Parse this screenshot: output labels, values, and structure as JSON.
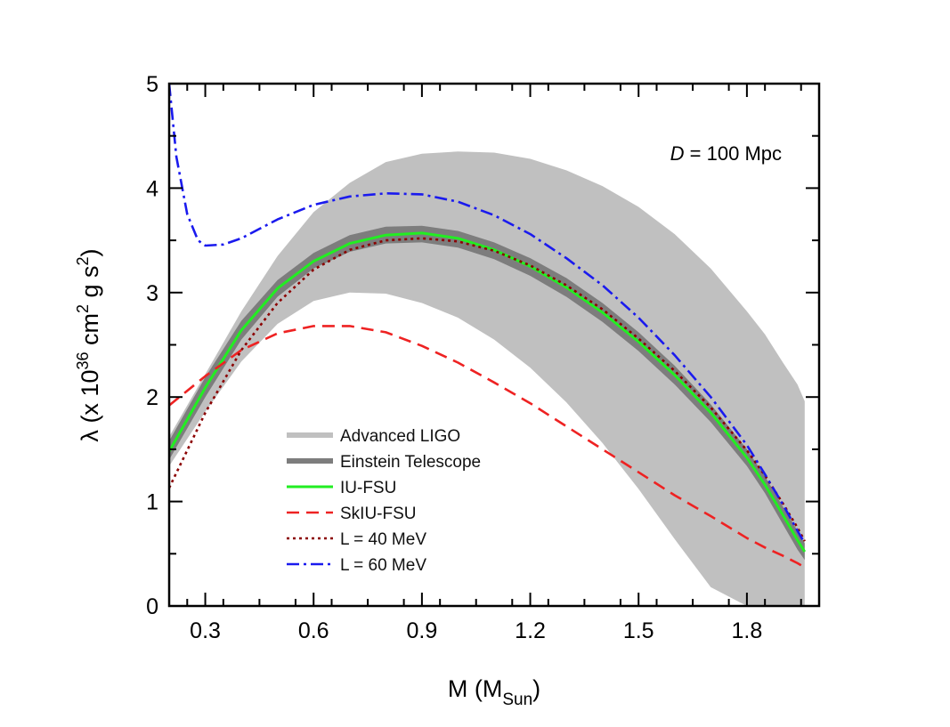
{
  "chart_data": {
    "type": "line",
    "title": "",
    "xlim": [
      0.2,
      2.0
    ],
    "ylim": [
      0,
      5
    ],
    "x_ticks": [
      0.3,
      0.6,
      0.9,
      1.2,
      1.5,
      1.8
    ],
    "x_tick_labels": [
      "0.3",
      "0.6",
      "0.9",
      "1.2",
      "1.5",
      "1.8"
    ],
    "y_ticks": [
      0,
      1,
      2,
      3,
      4,
      5
    ],
    "y_tick_labels": [
      "0",
      "1",
      "2",
      "3",
      "4",
      "5"
    ],
    "xlabel": {
      "main": "M (M",
      "sub": "Sun",
      "end": ")"
    },
    "ylabel": {
      "p1": "λ (x 10",
      "sup1": "36",
      "p2": " cm",
      "sup2": "2",
      "p3": " g s",
      "sup3": "2",
      "p4": ")"
    },
    "annotation": {
      "italic": "D",
      "rest": " = 100 Mpc"
    },
    "grid": false,
    "legend_position": "lower-center",
    "bands": [
      {
        "name": "Advanced LIGO",
        "color": "#c0c0c0",
        "x": [
          0.2,
          0.3,
          0.4,
          0.5,
          0.6,
          0.7,
          0.8,
          0.9,
          1.0,
          1.1,
          1.2,
          1.3,
          1.4,
          1.5,
          1.6,
          1.7,
          1.8,
          1.85,
          1.9,
          1.94,
          1.96
        ],
        "upper": [
          1.62,
          2.22,
          2.82,
          3.35,
          3.77,
          4.05,
          4.25,
          4.33,
          4.35,
          4.34,
          4.28,
          4.17,
          4.02,
          3.82,
          3.56,
          3.23,
          2.82,
          2.6,
          2.33,
          2.12,
          1.96
        ],
        "lower": [
          1.34,
          1.86,
          2.34,
          2.7,
          2.92,
          3.0,
          2.99,
          2.9,
          2.76,
          2.55,
          2.28,
          1.95,
          1.56,
          1.12,
          0.64,
          0.18,
          0.0,
          0.0,
          0.0,
          0.0,
          0.0
        ]
      },
      {
        "name": "Einstein Telescope",
        "color": "#7d7d7d",
        "x": [
          0.2,
          0.3,
          0.4,
          0.5,
          0.6,
          0.7,
          0.8,
          0.9,
          1.0,
          1.1,
          1.2,
          1.3,
          1.4,
          1.5,
          1.6,
          1.7,
          1.8,
          1.85,
          1.9,
          1.94,
          1.96
        ],
        "upper": [
          1.58,
          2.19,
          2.73,
          3.12,
          3.38,
          3.55,
          3.63,
          3.64,
          3.59,
          3.48,
          3.33,
          3.14,
          2.9,
          2.62,
          2.3,
          1.93,
          1.5,
          1.24,
          0.95,
          0.72,
          0.6
        ],
        "lower": [
          1.4,
          2.0,
          2.55,
          2.96,
          3.23,
          3.39,
          3.47,
          3.48,
          3.43,
          3.32,
          3.16,
          2.96,
          2.72,
          2.44,
          2.12,
          1.76,
          1.34,
          1.08,
          0.78,
          0.54,
          0.44
        ]
      }
    ],
    "series": [
      {
        "name": "IU-FSU",
        "color": "#22ee22",
        "dash": "solid",
        "x": [
          0.2,
          0.3,
          0.4,
          0.5,
          0.6,
          0.7,
          0.8,
          0.9,
          1.0,
          1.1,
          1.2,
          1.3,
          1.4,
          1.5,
          1.6,
          1.7,
          1.8,
          1.85,
          1.9,
          1.94,
          1.96
        ],
        "y": [
          1.48,
          2.09,
          2.64,
          3.04,
          3.3,
          3.47,
          3.55,
          3.57,
          3.52,
          3.41,
          3.25,
          3.05,
          2.81,
          2.53,
          2.21,
          1.85,
          1.42,
          1.16,
          0.87,
          0.63,
          0.52
        ]
      },
      {
        "name": "SkIU-FSU",
        "color": "#ee2222",
        "dash": "dashed",
        "x": [
          0.2,
          0.3,
          0.4,
          0.5,
          0.6,
          0.7,
          0.8,
          0.9,
          1.0,
          1.1,
          1.2,
          1.3,
          1.4,
          1.5,
          1.6,
          1.7,
          1.8,
          1.85,
          1.9,
          1.94,
          1.96
        ],
        "y": [
          1.92,
          2.2,
          2.45,
          2.61,
          2.68,
          2.68,
          2.62,
          2.49,
          2.33,
          2.14,
          1.94,
          1.72,
          1.5,
          1.28,
          1.06,
          0.86,
          0.65,
          0.56,
          0.48,
          0.41,
          0.37
        ]
      },
      {
        "name": "L = 40 MeV",
        "color": "#8b0000",
        "dash": "dotted",
        "x": [
          0.2,
          0.3,
          0.4,
          0.5,
          0.6,
          0.7,
          0.8,
          0.9,
          1.0,
          1.1,
          1.2,
          1.3,
          1.4,
          1.5,
          1.6,
          1.7,
          1.8,
          1.85,
          1.9,
          1.94,
          1.96
        ],
        "y": [
          1.13,
          1.85,
          2.45,
          2.9,
          3.22,
          3.41,
          3.5,
          3.52,
          3.49,
          3.4,
          3.26,
          3.07,
          2.84,
          2.56,
          2.25,
          1.9,
          1.49,
          1.25,
          0.98,
          0.75,
          0.62
        ]
      },
      {
        "name": "L = 60 MeV",
        "color": "#1a1aee",
        "dash": "dashdot",
        "x": [
          0.2,
          0.22,
          0.25,
          0.28,
          0.3,
          0.35,
          0.4,
          0.5,
          0.6,
          0.7,
          0.8,
          0.9,
          1.0,
          1.1,
          1.2,
          1.3,
          1.4,
          1.5,
          1.6,
          1.7,
          1.8,
          1.85,
          1.9,
          1.94,
          1.96
        ],
        "y": [
          5.0,
          4.3,
          3.75,
          3.5,
          3.45,
          3.46,
          3.52,
          3.7,
          3.84,
          3.92,
          3.95,
          3.94,
          3.87,
          3.74,
          3.56,
          3.33,
          3.07,
          2.76,
          2.4,
          2.0,
          1.54,
          1.26,
          0.97,
          0.72,
          0.6
        ]
      }
    ]
  }
}
